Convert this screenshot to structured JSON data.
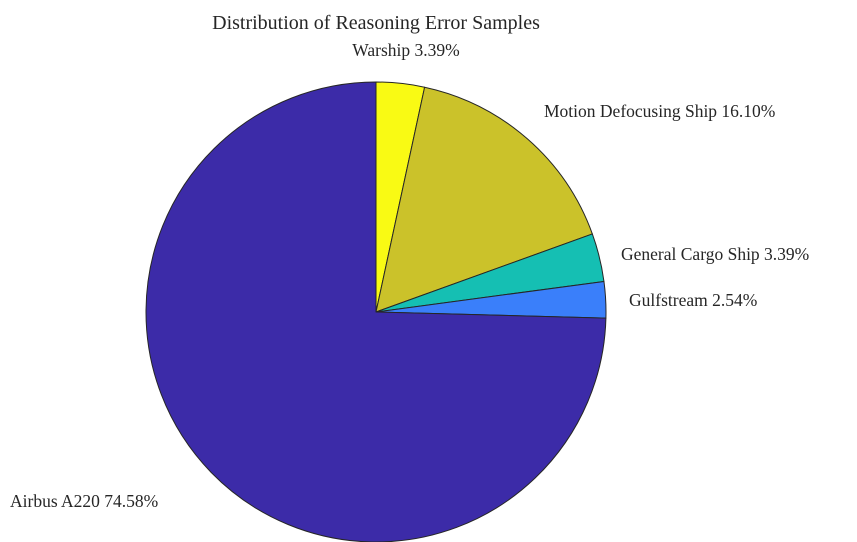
{
  "chart_data": {
    "type": "pie",
    "title": "Distribution of Reasoning Error Samples",
    "start": "12 o'clock",
    "direction": "clockwise",
    "slices": [
      {
        "label": "Warship",
        "value": 3.39,
        "display": "3.39%",
        "color": "#f9fa14"
      },
      {
        "label": "Motion Defocusing Ship",
        "value": 16.1,
        "display": "16.10%",
        "color": "#cbc22a"
      },
      {
        "label": "General Cargo Ship",
        "value": 3.39,
        "display": "3.39%",
        "color": "#15bfb3"
      },
      {
        "label": "Gulfstream",
        "value": 2.54,
        "display": "2.54%",
        "color": "#3a7ffa"
      },
      {
        "label": "Airbus A220",
        "value": 74.58,
        "display": "74.58%",
        "color": "#3c2ba8"
      }
    ]
  }
}
